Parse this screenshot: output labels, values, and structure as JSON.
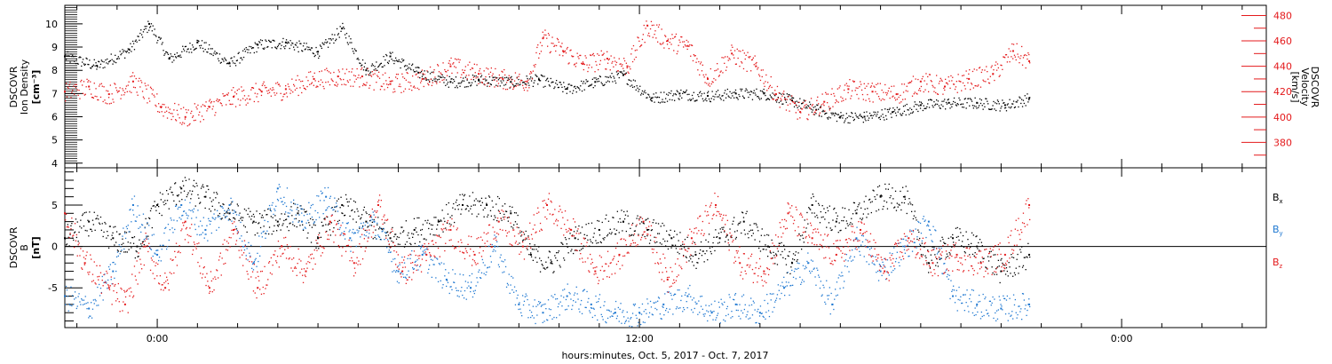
{
  "colors": {
    "black": "#000000",
    "red": "#e41a1c",
    "blue": "#1f78d1",
    "frame": "#000000"
  },
  "x_axis": {
    "label": "hours:minutes, Oct.  5, 2017 - Oct.  7, 2017",
    "range_hours": [
      -2.3,
      27.6
    ],
    "ticks": [
      {
        "hour": 0,
        "label": "0:00"
      },
      {
        "hour": 12,
        "label": "12:00"
      },
      {
        "hour": 24,
        "label": "0:00"
      }
    ]
  },
  "chart_data": [
    {
      "type": "scatter",
      "panel": "top",
      "left_axis": {
        "label_lines": [
          "DSCOVR",
          "Ion Density",
          "[cm⁻³]"
        ],
        "ylim": [
          3.8,
          10.8
        ],
        "ticks": [
          4,
          5,
          6,
          7,
          8,
          9,
          10
        ],
        "color": "#000000"
      },
      "right_axis": {
        "label_lines": [
          "DSCOVR",
          "Velocity",
          "[km/s]"
        ],
        "ylim": [
          360,
          488
        ],
        "ticks": [
          380,
          400,
          420,
          440,
          460,
          480
        ],
        "color": "#e41a1c"
      },
      "series": [
        {
          "axis": "left",
          "color": "#000000",
          "x": [
            -2.3,
            -1.5,
            -0.7,
            -0.2,
            0.3,
            1.0,
            1.8,
            2.5,
            3.2,
            4.0,
            4.6,
            5.2,
            5.8,
            6.5,
            7.3,
            8.0,
            8.8,
            9.5,
            10.2,
            10.9,
            11.6,
            12.3,
            13.0,
            13.7,
            14.4,
            15.1,
            15.8,
            16.4,
            17.0,
            17.6,
            18.3,
            19.0,
            19.7,
            20.4,
            21.1,
            21.7
          ],
          "y": [
            8.6,
            8.2,
            8.9,
            10.0,
            8.5,
            9.2,
            8.3,
            9.1,
            9.2,
            8.8,
            9.8,
            8.0,
            8.6,
            7.9,
            7.5,
            7.6,
            7.5,
            7.6,
            7.2,
            7.5,
            7.8,
            6.8,
            7.0,
            6.9,
            7.0,
            7.0,
            6.7,
            6.3,
            6.0,
            6.0,
            6.2,
            6.5,
            6.6,
            6.6,
            6.5,
            6.8
          ]
        },
        {
          "axis": "right",
          "color": "#e41a1c",
          "x": [
            -2.3,
            -1.7,
            -1.2,
            -0.6,
            0.1,
            0.7,
            1.3,
            1.9,
            2.6,
            3.2,
            3.9,
            4.5,
            5.1,
            5.8,
            6.6,
            7.3,
            8.0,
            8.6,
            9.2,
            9.6,
            10.1,
            10.6,
            11.2,
            11.7,
            12.2,
            12.7,
            13.2,
            13.7,
            14.3,
            14.9,
            15.4,
            16.0,
            16.6,
            17.2,
            17.8,
            18.4,
            19.0,
            19.6,
            20.2,
            20.8,
            21.3,
            21.7
          ],
          "y": [
            420,
            424,
            418,
            428,
            408,
            400,
            408,
            416,
            420,
            422,
            430,
            432,
            432,
            426,
            430,
            440,
            434,
            430,
            428,
            462,
            452,
            442,
            446,
            440,
            472,
            460,
            456,
            430,
            450,
            440,
            418,
            404,
            412,
            422,
            420,
            418,
            428,
            424,
            430,
            434,
            452,
            444
          ]
        }
      ]
    },
    {
      "type": "scatter",
      "panel": "bottom",
      "left_axis": {
        "label_lines": [
          "DSCOVR",
          "B",
          "[nT]"
        ],
        "ylim": [
          -9.8,
          9.5
        ],
        "ticks": [
          -5,
          0,
          5
        ],
        "color": "#000000"
      },
      "zero_line": true,
      "series": [
        {
          "name": "Bx",
          "color": "#000000",
          "x": [
            -2.3,
            -1.7,
            -1.1,
            -0.5,
            0.0,
            0.6,
            1.2,
            1.8,
            2.4,
            3.0,
            3.5,
            4.0,
            4.6,
            5.2,
            5.8,
            6.4,
            7.0,
            7.6,
            8.2,
            8.8,
            9.3,
            9.8,
            10.4,
            11.0,
            11.6,
            12.2,
            12.8,
            13.4,
            14.0,
            14.6,
            15.2,
            15.8,
            16.3,
            16.9,
            17.4,
            18.0,
            18.6,
            19.2,
            19.8,
            20.4,
            21.0,
            21.7
          ],
          "y": [
            1,
            3,
            1,
            0,
            5,
            7,
            6,
            4,
            3,
            3,
            4,
            1,
            5,
            3,
            1,
            2,
            3,
            5,
            5,
            4,
            -1,
            -2,
            1,
            2,
            3,
            2,
            1,
            -1,
            1,
            3,
            0,
            -2,
            5,
            3,
            4,
            6,
            6,
            -2,
            1,
            0,
            -3,
            -1
          ]
        },
        {
          "name": "By",
          "color": "#1f78d1",
          "x": [
            -2.3,
            -1.7,
            -1.1,
            -0.6,
            0.0,
            0.6,
            1.2,
            1.8,
            2.4,
            3.0,
            3.6,
            4.2,
            4.8,
            5.4,
            6.0,
            6.6,
            7.2,
            7.8,
            8.4,
            9.0,
            9.6,
            10.2,
            10.8,
            11.4,
            12.0,
            12.6,
            13.2,
            13.8,
            14.4,
            15.0,
            15.6,
            16.2,
            16.8,
            17.4,
            18.0,
            18.6,
            19.2,
            19.8,
            20.4,
            21.0,
            21.7
          ],
          "y": [
            -6,
            -7.5,
            -3,
            5,
            -1,
            5,
            2,
            5,
            -2,
            7,
            3,
            6,
            1,
            3,
            -3,
            -1,
            -4,
            -5,
            0,
            -7,
            -8,
            -6,
            -7,
            -8,
            -8,
            -7,
            -6,
            -8,
            -7,
            -8,
            -5,
            -2,
            -7,
            1,
            -3,
            0,
            3,
            -6,
            -7,
            -7.5,
            -7
          ]
        },
        {
          "name": "Bz",
          "color": "#e41a1c",
          "x": [
            -2.3,
            -1.8,
            -1.2,
            -0.8,
            -0.3,
            0.2,
            0.7,
            1.3,
            1.9,
            2.5,
            3.1,
            3.7,
            4.3,
            4.9,
            5.5,
            6.1,
            6.7,
            7.3,
            7.9,
            8.5,
            9.1,
            9.7,
            10.3,
            10.9,
            11.5,
            12.1,
            12.7,
            13.3,
            13.9,
            14.5,
            15.1,
            15.7,
            16.3,
            16.9,
            17.5,
            18.1,
            18.7,
            19.3,
            19.9,
            20.5,
            21.1,
            21.7
          ],
          "y": [
            4,
            -2,
            -5,
            -7,
            0,
            -5,
            3,
            -5,
            2,
            -5,
            0,
            -3,
            3,
            -2,
            5,
            -3,
            -1,
            2,
            -1,
            3,
            0,
            5,
            2,
            -3,
            -1,
            3,
            -4,
            1,
            5,
            -2,
            -3,
            4,
            1,
            -1,
            2,
            -3,
            1,
            -2,
            -1,
            -2,
            -1,
            5
          ]
        }
      ]
    }
  ],
  "legend": [
    {
      "label": "B",
      "sub": "x",
      "color": "#000000"
    },
    {
      "label": "B",
      "sub": "y",
      "color": "#1f78d1"
    },
    {
      "label": "B",
      "sub": "z",
      "color": "#e41a1c"
    }
  ]
}
